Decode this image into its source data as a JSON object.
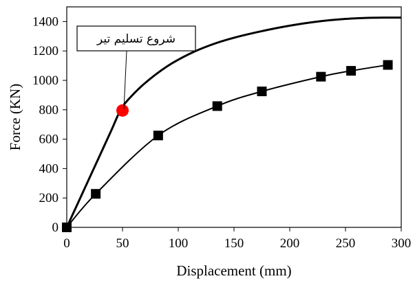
{
  "chart_data": {
    "type": "line",
    "xlabel": "Displacement (mm)",
    "ylabel": "Force (KN)",
    "xlim": [
      0,
      300
    ],
    "ylim": [
      0,
      1500
    ],
    "xticks": [
      0,
      50,
      100,
      150,
      200,
      250,
      300
    ],
    "yticks": [
      0,
      200,
      400,
      600,
      800,
      1000,
      1200,
      1400
    ],
    "grid": false,
    "series": [
      {
        "marker": "none",
        "color": "#000000",
        "x": [
          0,
          10,
          20,
          30,
          40,
          48,
          55,
          70,
          90,
          110,
          130,
          150,
          175,
          200,
          225,
          250,
          270,
          285,
          300
        ],
        "y": [
          0,
          165,
          330,
          495,
          660,
          795,
          868,
          980,
          1095,
          1180,
          1243,
          1290,
          1335,
          1372,
          1400,
          1418,
          1425,
          1427,
          1427
        ]
      },
      {
        "marker": "square",
        "color": "#000000",
        "x": [
          0,
          26,
          82,
          135,
          175,
          228,
          255,
          288
        ],
        "y": [
          0,
          228,
          625,
          825,
          925,
          1025,
          1065,
          1105
        ]
      }
    ],
    "highlight_point": {
      "x": 50,
      "y": 795,
      "color": "#ff0000"
    },
    "annotation": {
      "text": "شروع تسلیم تیر",
      "target": {
        "x": 50,
        "y": 795
      }
    }
  }
}
